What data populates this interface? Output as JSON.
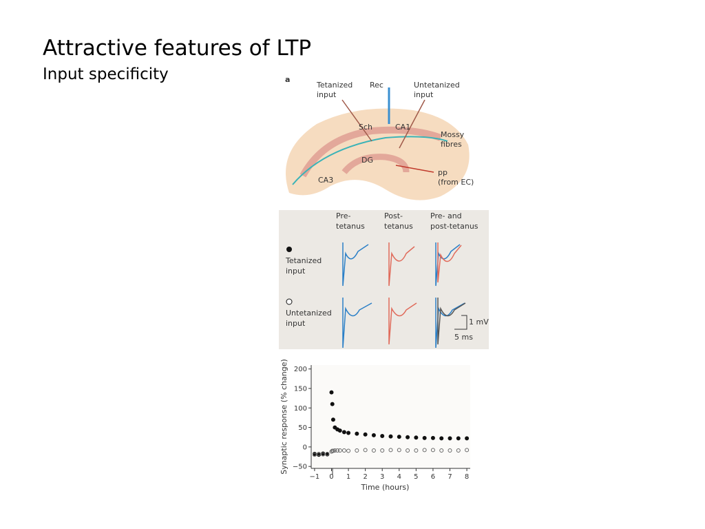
{
  "header": {
    "title": "Attractive features of LTP",
    "subtitle": "Input specificity"
  },
  "panel_a": {
    "label": "a",
    "tetanized_input": [
      "Tetanized",
      "input"
    ],
    "rec": "Rec",
    "untetanized_input": [
      "Untetanized",
      "input"
    ],
    "sch": "Sch",
    "ca1": "CA1",
    "mossy_fibres": [
      "Mossy",
      "fibres"
    ],
    "dg": "DG",
    "ca3": "CA3",
    "pp": [
      "pp",
      "(from EC)"
    ]
  },
  "traces": {
    "columns": [
      [
        "Pre-",
        "tetanus"
      ],
      [
        "Post-",
        "tetanus"
      ],
      [
        "Pre- and",
        "post-tetanus"
      ]
    ],
    "rows": [
      [
        "Tetanized",
        "input"
      ],
      [
        "Untetanized",
        "input"
      ]
    ],
    "scale_v": "1 mV",
    "scale_t": "5 ms"
  },
  "chart_data": {
    "type": "scatter",
    "xlabel": "Time (hours)",
    "ylabel": "Synaptic response (% change)",
    "x": [
      -1,
      -0.75,
      -0.5,
      -0.25,
      0,
      0.05,
      0.1,
      0.2,
      0.35,
      0.5,
      0.75,
      1,
      1.5,
      2,
      2.5,
      3,
      3.5,
      4,
      4.5,
      5,
      5.5,
      6,
      6.5,
      7,
      7.5,
      8
    ],
    "series": [
      {
        "name": "Tetanized input",
        "color": "#111111",
        "filled": true,
        "values": [
          -18,
          -20,
          -17,
          -19,
          140,
          110,
          70,
          50,
          45,
          42,
          38,
          36,
          34,
          32,
          30,
          28,
          27,
          26,
          25,
          24,
          23,
          23,
          22,
          22,
          22,
          22
        ]
      },
      {
        "name": "Untetanized input",
        "color": "#666666",
        "filled": false,
        "values": [
          -20,
          -18,
          -19,
          -18,
          -12,
          -10,
          -10,
          -9,
          -9,
          -9,
          -9,
          -10,
          -9,
          -8,
          -9,
          -9,
          -8,
          -8,
          -9,
          -9,
          -8,
          -8,
          -9,
          -9,
          -9,
          -8
        ]
      }
    ],
    "xlim": [
      -1.2,
      8.2
    ],
    "ylim": [
      -55,
      210
    ],
    "xticks": [
      {
        "value": -1,
        "label": "−1"
      },
      0,
      1,
      2,
      3,
      4,
      5,
      6,
      7,
      8
    ],
    "yticks": [
      {
        "value": -50,
        "label": "−50"
      },
      0,
      50,
      100,
      150,
      200
    ]
  }
}
